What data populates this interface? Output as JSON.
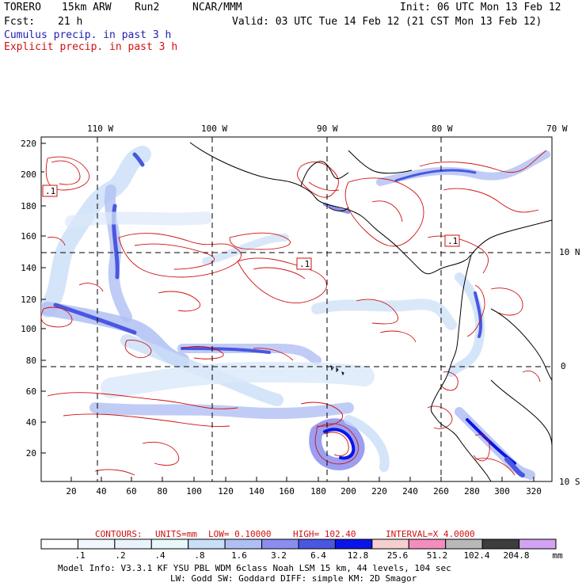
{
  "header": {
    "model": "TORERO",
    "resolution": "15km ARW",
    "run": "Run2",
    "org": "NCAR/MMM",
    "init": "Init: 06 UTC Mon 13 Feb 12",
    "fcst_label": "Fcst:",
    "fcst_value": "21 h",
    "valid": "Valid: 03 UTC Tue 14 Feb 12 (21 CST Mon 13 Feb 12)",
    "cumulus": "Cumulus precip. in past 3 h",
    "explicit": "Explicit precip. in past 3 h"
  },
  "map": {
    "lon_labels": [
      "110 W",
      "100 W",
      "90 W",
      "80 W",
      "70 W"
    ],
    "lat_labels": [
      "10 N",
      "0",
      "10 S"
    ],
    "y_ticks": [
      "220",
      "200",
      "180",
      "160",
      "140",
      "120",
      "100",
      "80",
      "60",
      "40",
      "20"
    ],
    "x_ticks": [
      "20",
      "40",
      "60",
      "80",
      "100",
      "120",
      "140",
      "160",
      "180",
      "200",
      "220",
      "240",
      "260",
      "280",
      "300",
      "320"
    ],
    "boxed_labels": [
      ".1",
      ".1",
      ".1"
    ]
  },
  "contours": {
    "label": "CONTOURS:",
    "units": "UNITS=mm",
    "low": "LOW= 0.10000",
    "high": "HIGH= 102.40",
    "interval": "INTERVAL=X 4.0000"
  },
  "colorbar": {
    "labels": [
      ".1",
      ".2",
      ".4",
      ".8",
      "1.6",
      "3.2",
      "6.4",
      "12.8",
      "25.6",
      "51.2",
      "102.4",
      "204.8"
    ],
    "unit": "mm",
    "colors": [
      "#ffffff",
      "#f2f7fd",
      "#eaf2fc",
      "#e6f8fa",
      "#c9def7",
      "#b0bff3",
      "#8a8ef0",
      "#4a57e0",
      "#0b14e6",
      "#f5cfcf",
      "#f28dbe",
      "#b8b8b8",
      "#3d3d3d",
      "#d4a2f2"
    ]
  },
  "model_info": {
    "line1": "Model Info: V3.3.1    KF    YSU PBL   WDM 6class  Noah LSM   15 km,   44 levels,  104 sec",
    "line2": "LW: Godd SW: Goddard DIFF: simple KM: 2D Smagor"
  }
}
